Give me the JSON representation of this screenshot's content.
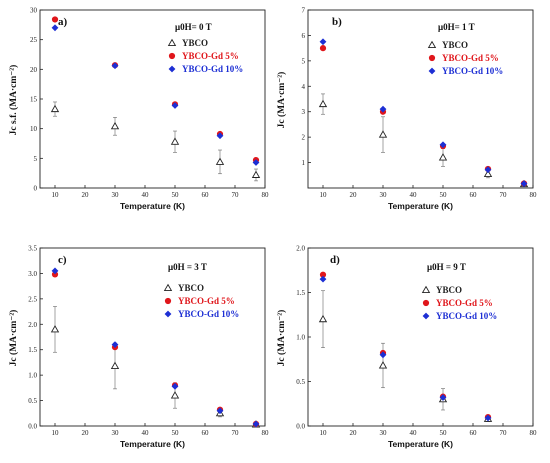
{
  "colors": {
    "ybco": "#222222",
    "gd5": "#e0161b",
    "gd10": "#1d2fd4"
  },
  "chart_data": [
    {
      "type": "scatter",
      "panel_label": "a)",
      "condition": "μ0H= 0 T",
      "xlabel": "Temperature (K)",
      "ylabel": "Jc s.f. (MA·cm⁻²)",
      "xlim": [
        5,
        80
      ],
      "ylim": [
        0,
        30
      ],
      "xticks": [
        10,
        20,
        30,
        40,
        50,
        60,
        70,
        80
      ],
      "yticks": [
        0,
        5,
        10,
        15,
        20,
        25,
        30
      ],
      "legend_position": "right",
      "series": [
        {
          "name": "YBCO",
          "marker": "open-triangle",
          "color": "#222222",
          "x": [
            10,
            30,
            50,
            65,
            77
          ],
          "y": [
            13.3,
            10.4,
            7.8,
            4.4,
            2.2
          ],
          "err": [
            1.2,
            1.5,
            1.8,
            2.0,
            1.0
          ]
        },
        {
          "name": "YBCO-Gd 5%",
          "marker": "circle",
          "color": "#e0161b",
          "x": [
            10,
            30,
            50,
            65,
            77
          ],
          "y": [
            28.4,
            20.7,
            14.1,
            9.1,
            4.7
          ]
        },
        {
          "name": "YBCO-Gd 10%",
          "marker": "diamond",
          "color": "#1d2fd4",
          "x": [
            10,
            30,
            50,
            65,
            77
          ],
          "y": [
            27.0,
            20.6,
            13.9,
            8.8,
            4.3
          ]
        }
      ]
    },
    {
      "type": "scatter",
      "panel_label": "b)",
      "condition": "μ0H= 1 T",
      "xlabel": "Temperature (K)",
      "ylabel": "Jc (MA·cm⁻²)",
      "xlim": [
        5,
        80
      ],
      "ylim": [
        0,
        7
      ],
      "xticks": [
        10,
        20,
        30,
        40,
        50,
        60,
        70,
        80
      ],
      "yticks": [
        1,
        2,
        3,
        4,
        5,
        6,
        7
      ],
      "legend_position": "right",
      "series": [
        {
          "name": "YBCO",
          "marker": "open-triangle",
          "color": "#222222",
          "x": [
            10,
            30,
            50,
            65,
            77
          ],
          "y": [
            3.3,
            2.1,
            1.2,
            0.55,
            0.15
          ],
          "err": [
            0.4,
            0.7,
            0.35,
            0.15,
            0.05
          ]
        },
        {
          "name": "YBCO-Gd 5%",
          "marker": "circle",
          "color": "#e0161b",
          "x": [
            10,
            30,
            50,
            65,
            77
          ],
          "y": [
            5.5,
            3.0,
            1.65,
            0.75,
            0.18
          ]
        },
        {
          "name": "YBCO-Gd 10%",
          "marker": "diamond",
          "color": "#1d2fd4",
          "x": [
            10,
            30,
            50,
            65,
            77
          ],
          "y": [
            5.75,
            3.1,
            1.7,
            0.72,
            0.17
          ]
        }
      ]
    },
    {
      "type": "scatter",
      "panel_label": "c)",
      "condition": "μ0H = 3 T",
      "xlabel": "Temperature (K)",
      "ylabel": "Jc (MA·cm⁻²)",
      "xlim": [
        5,
        80
      ],
      "ylim": [
        0,
        3.5
      ],
      "xticks": [
        10,
        20,
        30,
        40,
        50,
        60,
        70,
        80
      ],
      "yticks": [
        "0.0",
        "0.5",
        "1.0",
        "1.5",
        "2.0",
        "2.5",
        "3.0",
        "3.5"
      ],
      "legend_position": "right",
      "series": [
        {
          "name": "YBCO",
          "marker": "open-triangle",
          "color": "#222222",
          "x": [
            10,
            30,
            50,
            65,
            77
          ],
          "y": [
            1.9,
            1.18,
            0.6,
            0.25,
            0.03
          ],
          "err": [
            0.45,
            0.45,
            0.25,
            0.07,
            0.02
          ]
        },
        {
          "name": "YBCO-Gd 5%",
          "marker": "circle",
          "color": "#e0161b",
          "x": [
            10,
            30,
            50,
            65,
            77
          ],
          "y": [
            2.98,
            1.55,
            0.8,
            0.32,
            0.04
          ]
        },
        {
          "name": "YBCO-Gd 10%",
          "marker": "diamond",
          "color": "#1d2fd4",
          "x": [
            10,
            30,
            50,
            65,
            77
          ],
          "y": [
            3.05,
            1.6,
            0.78,
            0.3,
            0.04
          ]
        }
      ]
    },
    {
      "type": "scatter",
      "panel_label": "d)",
      "condition": "μ0H = 9 T",
      "xlabel": "Temperature (K)",
      "ylabel": "Jc (MA·cm⁻²)",
      "xlim": [
        5,
        80
      ],
      "ylim": [
        0,
        2.0
      ],
      "xticks": [
        10,
        20,
        30,
        40,
        50,
        60,
        70,
        80
      ],
      "yticks": [
        "0.0",
        "0.5",
        "1.0",
        "1.5",
        "2.0"
      ],
      "legend_position": "right",
      "series": [
        {
          "name": "YBCO",
          "marker": "open-triangle",
          "color": "#222222",
          "x": [
            10,
            30,
            50,
            65
          ],
          "y": [
            1.2,
            0.68,
            0.3,
            0.08
          ],
          "err": [
            0.32,
            0.25,
            0.12,
            0.03
          ]
        },
        {
          "name": "YBCO-Gd 5%",
          "marker": "circle",
          "color": "#e0161b",
          "x": [
            10,
            30,
            50,
            65
          ],
          "y": [
            1.7,
            0.82,
            0.33,
            0.1
          ]
        },
        {
          "name": "YBCO-Gd 10%",
          "marker": "diamond",
          "color": "#1d2fd4",
          "x": [
            10,
            30,
            50,
            65
          ],
          "y": [
            1.65,
            0.8,
            0.32,
            0.09
          ]
        }
      ]
    }
  ]
}
